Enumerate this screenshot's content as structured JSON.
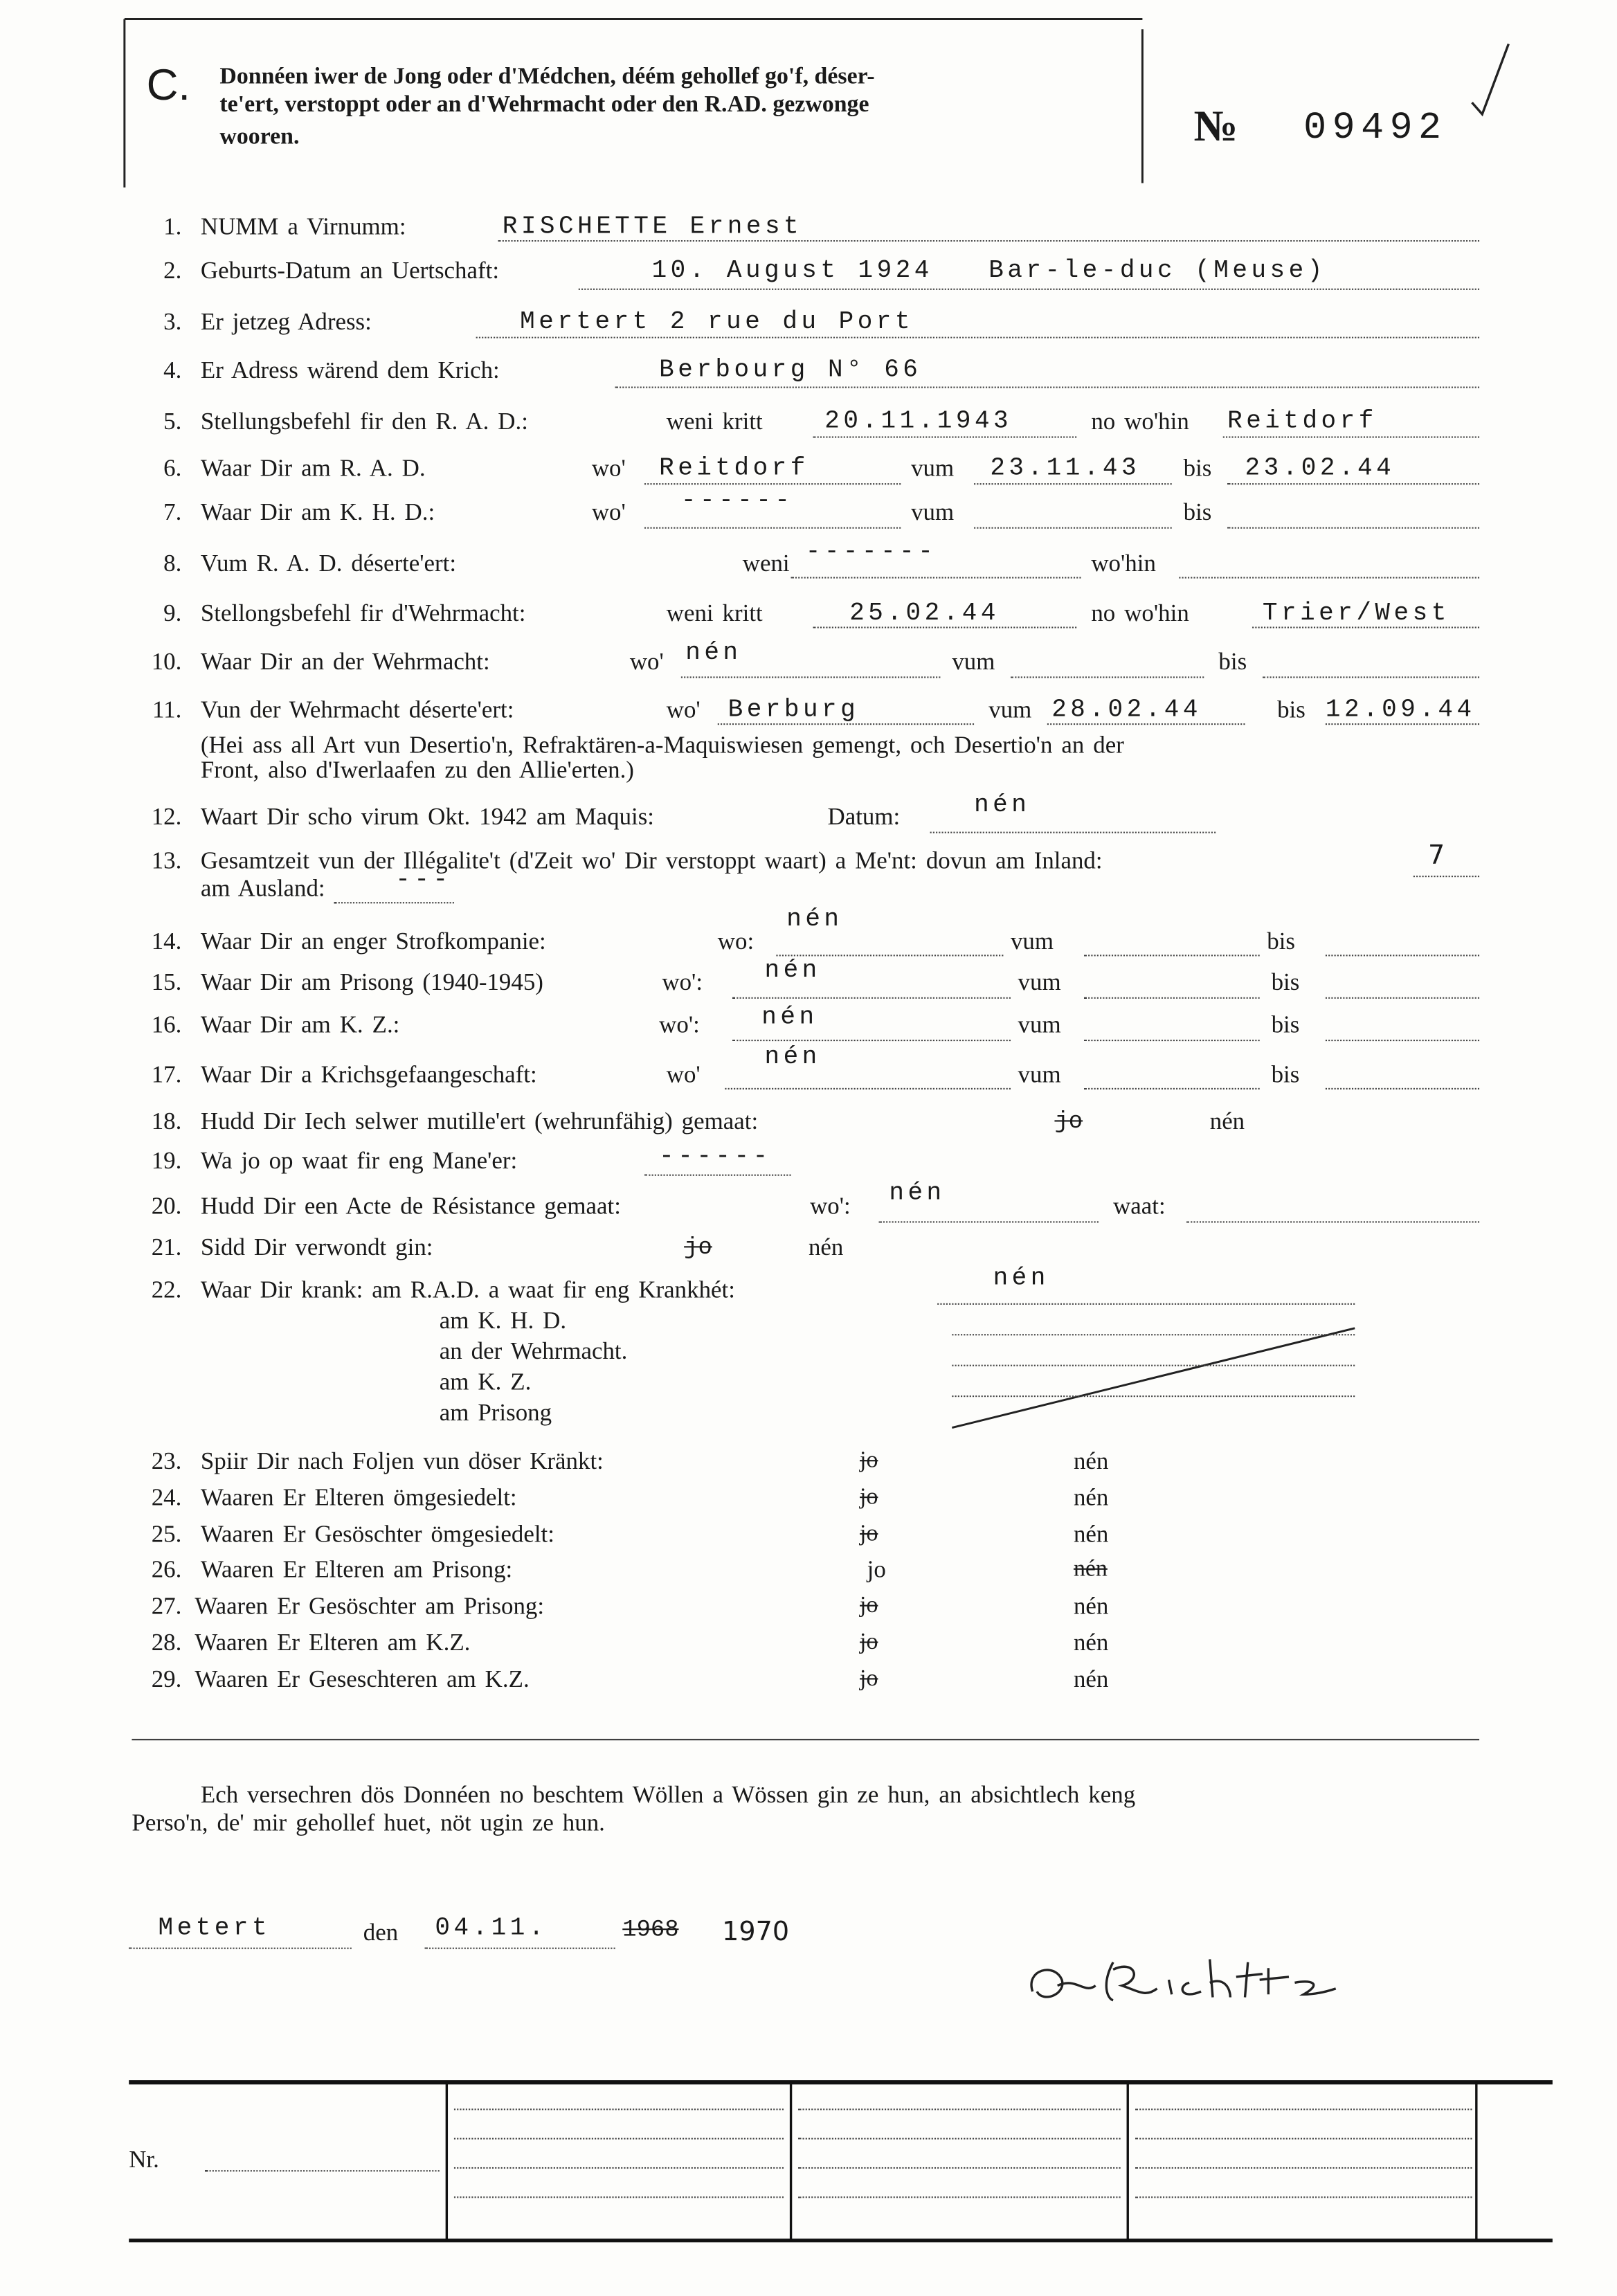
{
  "header": {
    "section": "C.",
    "text": [
      "Donnéen iwer de Jong oder d'Médchen, déém gehollef go'f, déser-",
      "te'ert, verstoppt oder an d'Wehrmacht oder den R.AD. gezwonge",
      "wooren."
    ],
    "number_sign": "№",
    "number": "09492"
  },
  "items": [
    {
      "num": "1.",
      "label": "NUMM a Virnumm:",
      "fields": [
        "RISCHETTE Ernest"
      ]
    },
    {
      "num": "2.",
      "label": "Geburts-Datum an Uertschaft:",
      "fields": [
        "10. August 1924",
        "Bar-le-duc (Meuse)"
      ]
    },
    {
      "num": "3.",
      "label": "Er jetzeg Adress:",
      "fields": [
        "Mertert 2 rue du Port"
      ]
    },
    {
      "num": "4.",
      "label": "Er Adress wärend dem Krich:",
      "fields": [
        "Berbourg N° 66"
      ]
    },
    {
      "num": "5.",
      "label": "Stellungsbefehl fir den R. A. D.:",
      "fields": [
        "weni kritt",
        "20.11.1943",
        "no wo'hin",
        "Reitdorf"
      ]
    },
    {
      "num": "6.",
      "label": "Waar Dir am R. A. D.",
      "fields": [
        "wo'",
        "Reitdorf",
        "vum",
        "23.11.43",
        "bis",
        "23.02.44"
      ]
    },
    {
      "num": "7.",
      "label": "Waar Dir am K. H. D.:",
      "fields": [
        "wo'",
        "------",
        "vum",
        "bis"
      ]
    },
    {
      "num": "8.",
      "label": "Vum R. A. D. déserte'ert:",
      "fields": [
        "weni",
        "-------",
        "wo'hin"
      ]
    },
    {
      "num": "9.",
      "label": "Stellongsbefehl fir d'Wehrmacht:",
      "fields": [
        "weni kritt",
        "25.02.44",
        "no wo'hin",
        "Trier/West"
      ]
    },
    {
      "num": "10.",
      "label": "Waar Dir an der Wehrmacht:",
      "fields": [
        "wo'",
        "nén",
        "vum",
        "bis"
      ]
    },
    {
      "num": "11.",
      "label": "Vun der Wehrmacht déserte'ert:",
      "fields": [
        "wo'",
        "Berburg",
        "vum",
        "28.02.44",
        "bis",
        "12.09.44",
        "(Hei ass all Art vun Desertio'n, Refraktären-a-Maquiswiesen gemengt, och Desertio'n an der",
        "Front, also d'Iwerlaafen zu den Allie'erten.)"
      ]
    },
    {
      "num": "12.",
      "label": "Waart Dir scho virum Okt. 1942 am Maquis:",
      "fields": [
        "Datum:",
        "nén"
      ]
    },
    {
      "num": "13.",
      "label": "Gesamtzeit vun der Illégalite't (d'Zeit wo' Dir verstoppt waart) a Me'nt: dovun am Inland:",
      "fields": [
        "7",
        "am Ausland:",
        "---"
      ]
    },
    {
      "num": "14.",
      "label": "Waar Dir an enger Strofkompanie:",
      "fields": [
        "wo:",
        "nén",
        "vum",
        "bis"
      ]
    },
    {
      "num": "15.",
      "label": "Waar Dir am Prisong (1940-1945)",
      "fields": [
        "wo':",
        "nén",
        "vum",
        "bis"
      ]
    },
    {
      "num": "16.",
      "label": "Waar Dir am K. Z.:",
      "fields": [
        "wo':",
        "nén",
        "vum",
        "bis"
      ]
    },
    {
      "num": "17.",
      "label": "Waar Dir a Krichsgefaangeschaft:",
      "fields": [
        "wo'",
        "nén",
        "vum",
        "bis"
      ]
    },
    {
      "num": "18.",
      "label": "Hudd Dir Iech selwer mutille'ert (wehrunfähig) gemaat:",
      "fields": [
        "jo",
        "nén"
      ]
    },
    {
      "num": "19.",
      "label": "Wa jo op waat fir eng Mane'er:",
      "fields": [
        "------"
      ]
    },
    {
      "num": "20.",
      "label": "Hudd Dir een Acte de Résistance gemaat:",
      "fields": [
        "wo':",
        "nén",
        "waat:"
      ]
    },
    {
      "num": "21.",
      "label": "Sidd Dir verwondt gin:",
      "fields": [
        "jo",
        "nén"
      ]
    },
    {
      "num": "22.",
      "label": "Waar Dir krank: am R.A.D. a waat fir eng Krankhét:",
      "fields": [
        "nén",
        "am K. H. D.",
        "an der Wehrmacht.",
        "am K. Z.",
        "am Prisong"
      ]
    },
    {
      "num": "23.",
      "label": "Spiir Dir nach Foljen vun döser Kränkt:",
      "fields": [
        "jo",
        "nén"
      ]
    },
    {
      "num": "24.",
      "label": "Waaren Er Elteren ömgesiedelt:",
      "fields": [
        "jo",
        "nén"
      ]
    },
    {
      "num": "25.",
      "label": "Waaren Er Gesöschter ömgesiedelt:",
      "fields": [
        "jo",
        "nén"
      ]
    },
    {
      "num": "26.",
      "label": "Waaren Er Elteren am Prisong:",
      "fields": [
        "jo",
        "nén"
      ]
    },
    {
      "num": "27.",
      "label": "Waaren Er Gesöschter am Prisong:",
      "fields": [
        "jo",
        "nén"
      ]
    },
    {
      "num": "28.",
      "label": "Waaren Er Elteren am K.Z.",
      "fields": [
        "jo",
        "nén"
      ]
    },
    {
      "num": "29.",
      "label": "Waaren Er Geseschteren am K.Z.",
      "fields": [
        "jo",
        "nén"
      ]
    }
  ],
  "declaration": [
    "Ech versechren dös Donnéen no beschtem Wöllen a Wössen gin ze hun, an absichtlech keng",
    "Perso'n, de' mir gehollef huet, nöt ugin ze hun."
  ],
  "footer": {
    "place": "Metert",
    "den": "den",
    "date": "04.11.",
    "year_struck": "1968",
    "year": "1970",
    "nr_label": "Nr."
  }
}
